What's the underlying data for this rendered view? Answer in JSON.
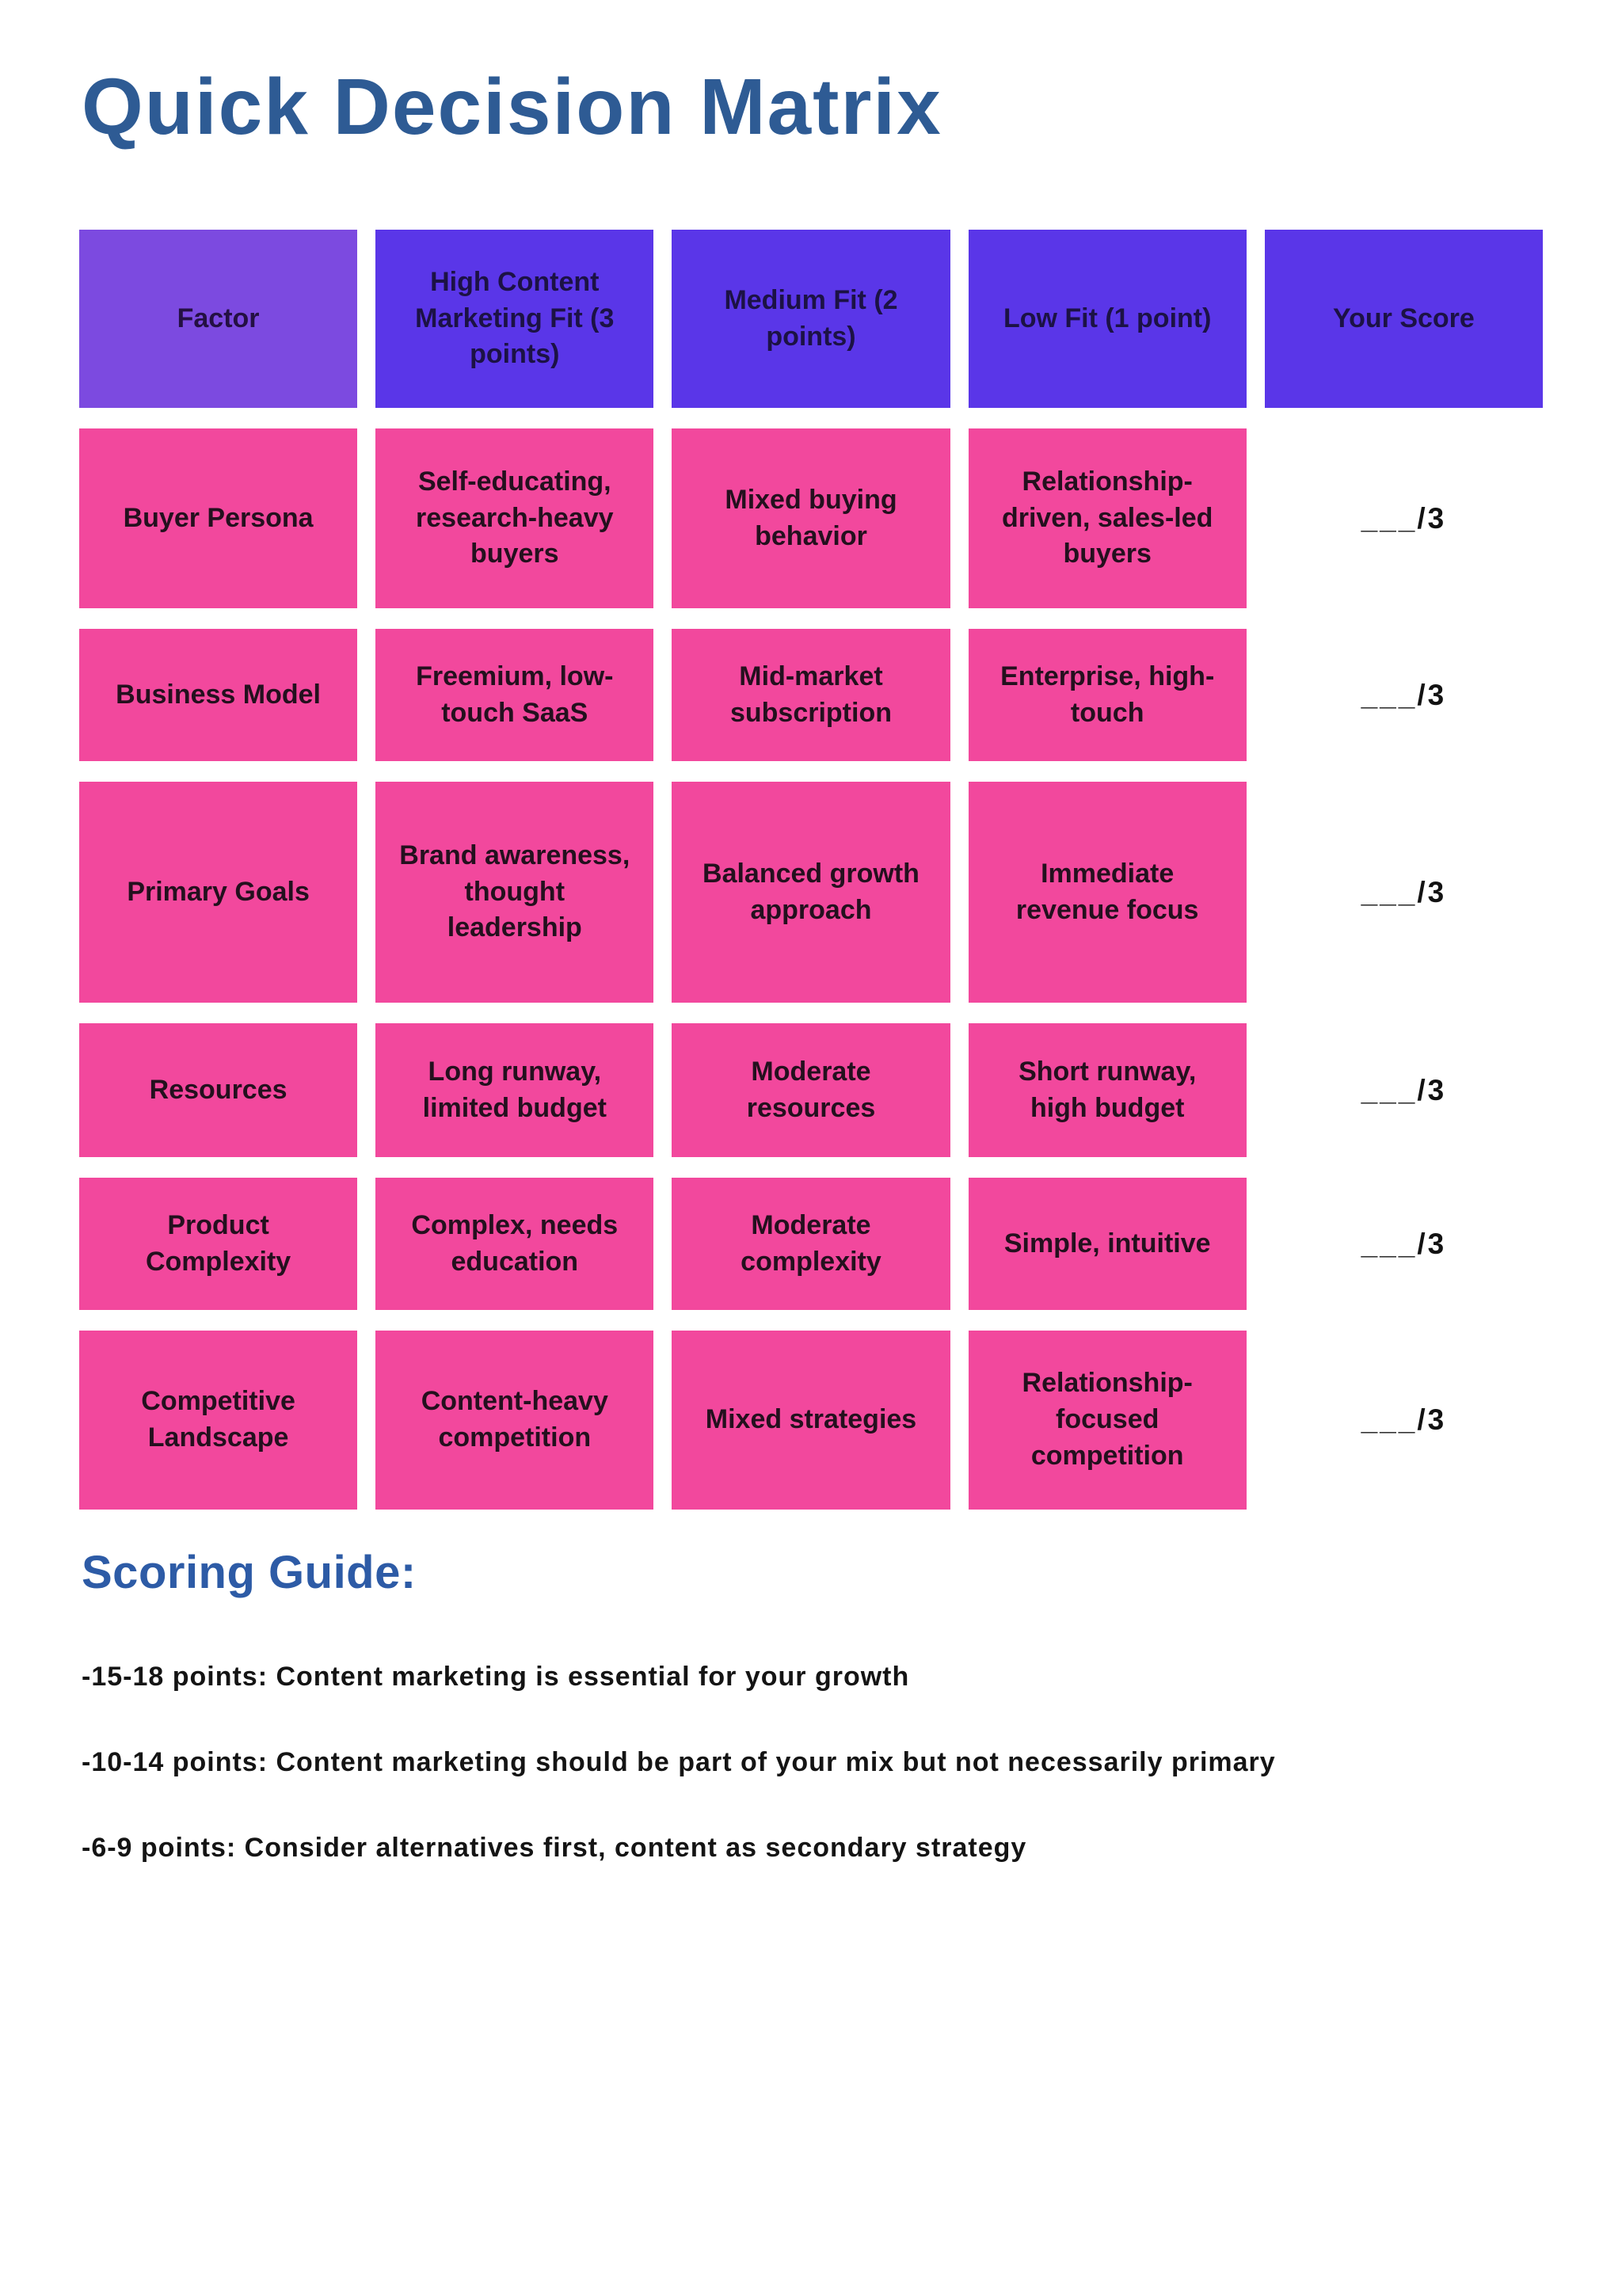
{
  "page": {
    "title": "Quick Decision Matrix"
  },
  "colors": {
    "title_blue": "#2e5b94",
    "guide_heading_blue": "#2d5ba6",
    "header_factor_purple": "#7c4ae0",
    "header_purple": "#5a36e8",
    "cell_pink": "#f2489d",
    "background": "#ffffff"
  },
  "table": {
    "headers": [
      "Factor",
      "High Content Marketing Fit (3 points)",
      "Medium Fit (2 points)",
      "Low Fit (1 point)",
      "Your Score"
    ],
    "rows": [
      {
        "factor": "Buyer Persona",
        "high": "Self-educating, research-heavy buyers",
        "medium": "Mixed buying behavior",
        "low": "Relationship-driven, sales-led buyers",
        "score": "___/3"
      },
      {
        "factor": "Business Model",
        "high": "Freemium, low-touch SaaS",
        "medium": "Mid-market subscription",
        "low": "Enterprise, high-touch",
        "score": "___/3"
      },
      {
        "factor": "Primary Goals",
        "high": "Brand awareness, thought leadership",
        "medium": "Balanced growth approach",
        "low": "Immediate revenue focus",
        "score": "___/3"
      },
      {
        "factor": "Resources",
        "high": "Long runway, limited budget",
        "medium": "Moderate resources",
        "low": "Short runway, high budget",
        "score": "___/3"
      },
      {
        "factor": "Product Complexity",
        "high": "Complex, needs education",
        "medium": "Moderate complexity",
        "low": "Simple, intuitive",
        "score": "___/3"
      },
      {
        "factor": "Competitive Landscape",
        "high": "Content-heavy competition",
        "medium": "Mixed strategies",
        "low": "Relationship-focused competition",
        "score": "___/3"
      }
    ]
  },
  "scoring_guide": {
    "heading": "Scoring Guide:",
    "items": [
      "-15-18 points: Content marketing is essential for your growth",
      "-10-14 points: Content marketing should be part of your mix but not necessarily primary",
      "-6-9 points: Consider alternatives first, content as secondary strategy"
    ]
  }
}
